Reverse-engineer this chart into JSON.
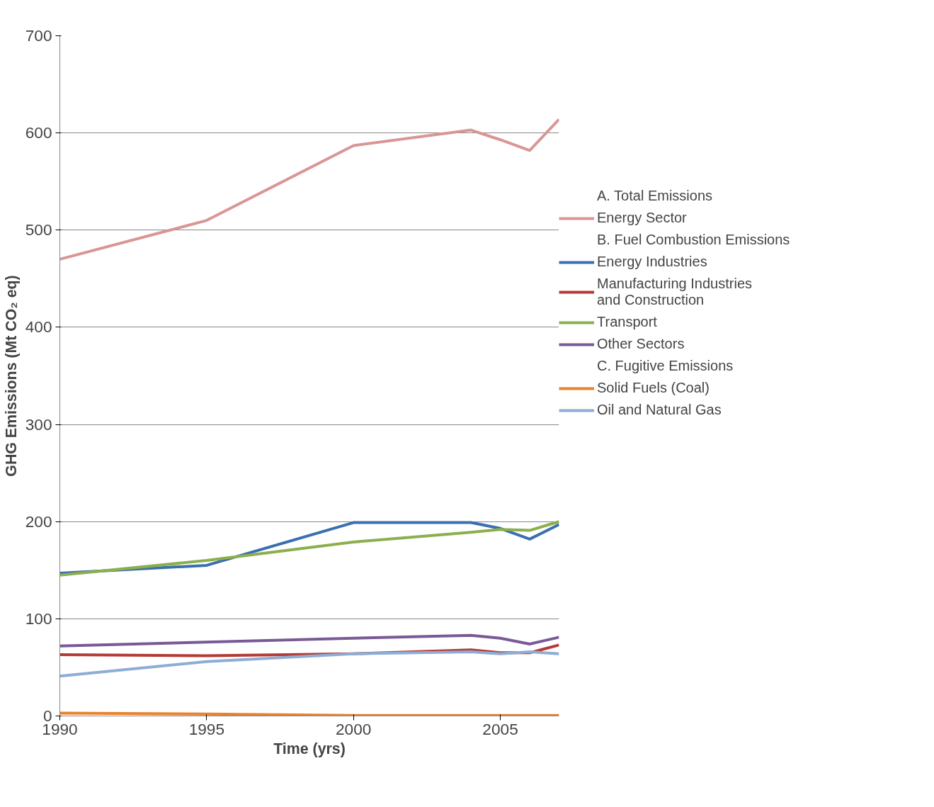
{
  "chart_data": {
    "type": "line",
    "xlabel": "Time (yrs)",
    "ylabel": "GHG Emissions (Mt CO₂ eq)",
    "x": [
      1990,
      1995,
      2000,
      2004,
      2005,
      2006,
      2007
    ],
    "xlim": [
      1990,
      2007
    ],
    "xticks": [
      1990,
      1995,
      2000,
      2005
    ],
    "ylim": [
      0,
      700
    ],
    "yticks": [
      0,
      100,
      200,
      300,
      400,
      500,
      600,
      700
    ],
    "grid": "y",
    "legend": "right",
    "marker": "none",
    "line_style": "solid",
    "annotations": [
      "A. Total Emissions",
      "B. Fuel Combustion Emissions",
      "C. Fugitive Emissions"
    ],
    "series": [
      {
        "name": "Energy Sector",
        "color": "#d99694",
        "values": [
          470,
          510,
          587,
          603,
          593,
          582,
          614
        ]
      },
      {
        "name": "Energy Industries",
        "color": "#3a6fb0",
        "values": [
          147,
          155,
          199,
          199,
          193,
          182,
          197
        ]
      },
      {
        "name": "Manufacturing Industries\nand Construction",
        "color": "#b53a35",
        "values": [
          63,
          62,
          64,
          68,
          65,
          65,
          73
        ]
      },
      {
        "name": "Transport",
        "color": "#8caf4e",
        "values": [
          145,
          160,
          179,
          189,
          192,
          191,
          200
        ]
      },
      {
        "name": "Other Sectors",
        "color": "#7a5a96",
        "values": [
          72,
          76,
          80,
          83,
          80,
          74,
          81
        ]
      },
      {
        "name": "Solid Fuels (Coal)",
        "color": "#e8822e",
        "values": [
          3,
          2,
          0.5,
          0.5,
          0.5,
          0.5,
          0.5
        ]
      },
      {
        "name": "Oil and Natural Gas",
        "color": "#8eadd6",
        "values": [
          41,
          56,
          64,
          66,
          64,
          66,
          64
        ]
      }
    ]
  }
}
